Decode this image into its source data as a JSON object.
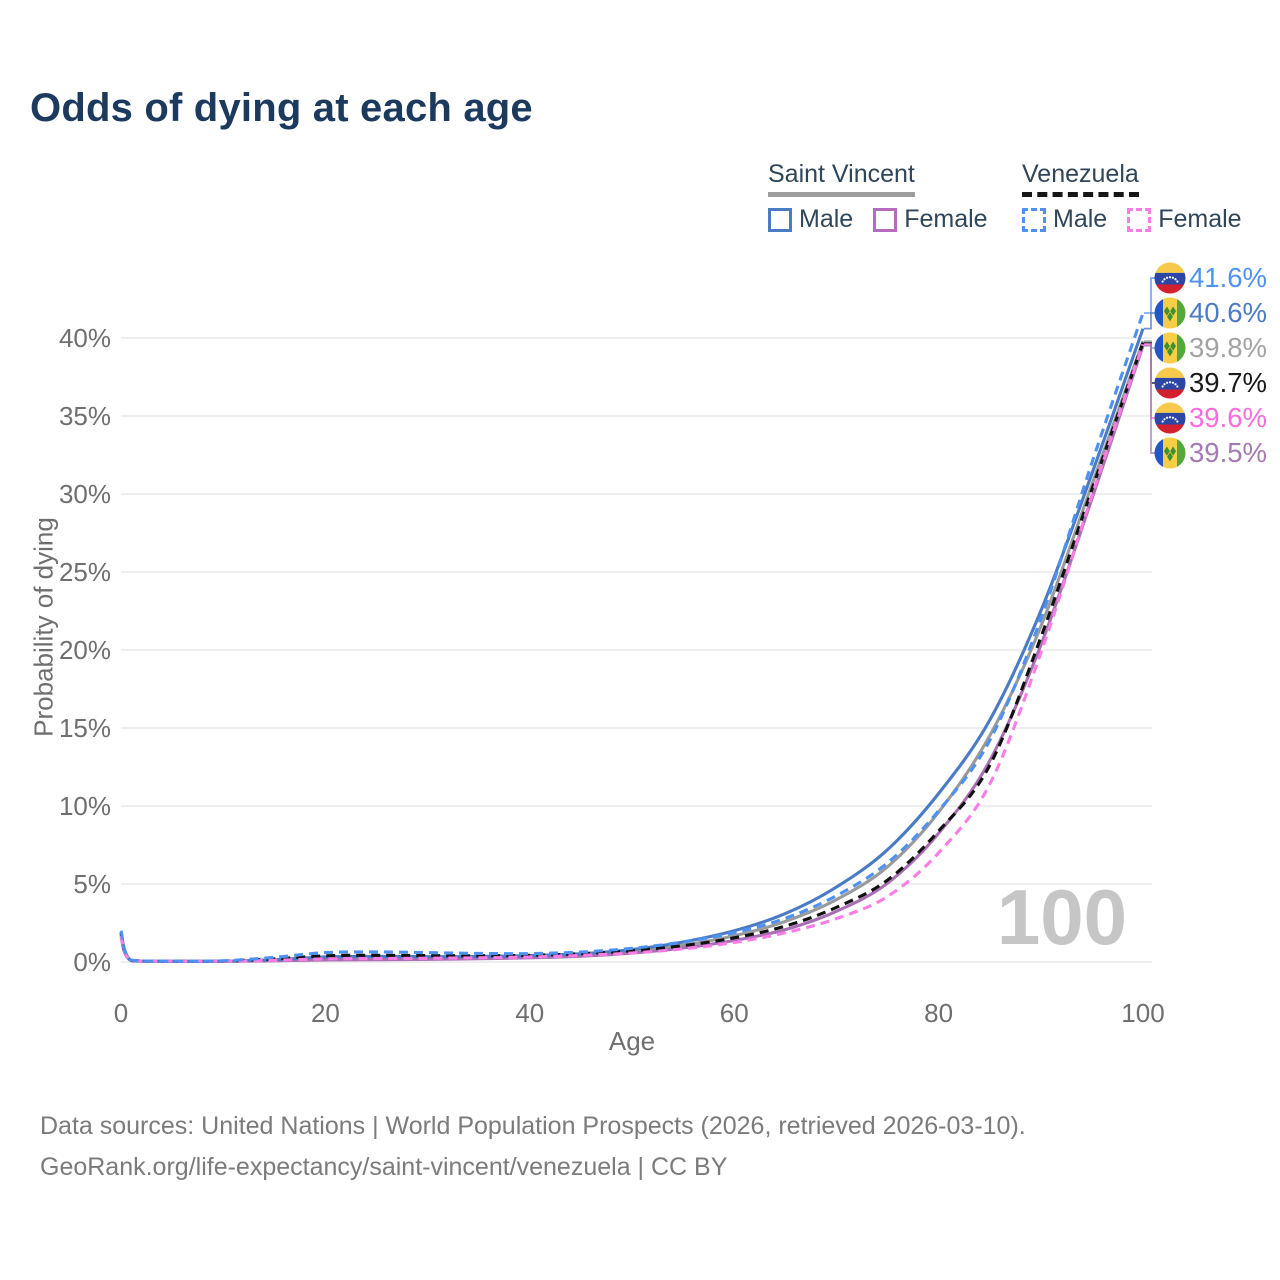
{
  "title": "Odds of dying at each age",
  "legend": {
    "groups": [
      {
        "label": "Saint Vincent",
        "style": "solid",
        "items": [
          {
            "label": "Male",
            "color": "#4a7bc4",
            "dashed": false
          },
          {
            "label": "Female",
            "color": "#b66bbd",
            "dashed": false
          }
        ]
      },
      {
        "label": "Venezuela",
        "style": "dashed",
        "items": [
          {
            "label": "Male",
            "color": "#4d92f2",
            "dashed": true
          },
          {
            "label": "Female",
            "color": "#fb7ce4",
            "dashed": true
          }
        ]
      }
    ]
  },
  "chart_data": {
    "type": "line",
    "title": "Odds of dying at each age",
    "xlabel": "Age",
    "ylabel": "Probability of dying",
    "xlim": [
      0,
      100
    ],
    "ylim": [
      0,
      43
    ],
    "xticks": [
      0,
      20,
      40,
      60,
      80,
      100
    ],
    "yticks": [
      0,
      5,
      10,
      15,
      20,
      25,
      30,
      35,
      40
    ],
    "grid": true,
    "legend_position": "top-right",
    "watermark": "100",
    "x": [
      0,
      1,
      5,
      10,
      15,
      20,
      25,
      30,
      35,
      40,
      45,
      50,
      55,
      60,
      65,
      70,
      75,
      80,
      85,
      90,
      95,
      100
    ],
    "series": [
      {
        "key": "saint-vincent-all",
        "name": "Saint Vincent",
        "color": "#9a9a9a",
        "dash": null,
        "values": [
          1.75,
          0.09,
          0.05,
          0.05,
          0.11,
          0.23,
          0.26,
          0.26,
          0.28,
          0.34,
          0.45,
          0.68,
          1.07,
          1.68,
          2.6,
          4.0,
          6.1,
          9.6,
          14.5,
          21.5,
          30.6,
          39.8
        ]
      },
      {
        "key": "saint-vincent-female",
        "name": "Saint Vincent Female",
        "color": "#a96fb5",
        "dash": null,
        "values": [
          1.6,
          0.08,
          0.04,
          0.04,
          0.08,
          0.13,
          0.15,
          0.17,
          0.21,
          0.27,
          0.37,
          0.57,
          0.9,
          1.38,
          2.08,
          3.25,
          5.05,
          8.25,
          12.9,
          20.3,
          29.7,
          39.5
        ]
      },
      {
        "key": "saint-vincent-male",
        "name": "Saint Vincent Male",
        "color": "#4a7bc4",
        "dash": null,
        "values": [
          1.9,
          0.1,
          0.05,
          0.06,
          0.15,
          0.33,
          0.36,
          0.34,
          0.35,
          0.41,
          0.53,
          0.8,
          1.28,
          2.0,
          3.1,
          4.8,
          7.2,
          10.8,
          15.5,
          22.5,
          31.3,
          40.6
        ]
      },
      {
        "key": "venezuela-all",
        "name": "Venezuela",
        "color": "#111111",
        "dash": "9 6",
        "values": [
          1.85,
          0.11,
          0.05,
          0.06,
          0.2,
          0.4,
          0.43,
          0.41,
          0.4,
          0.43,
          0.53,
          0.72,
          1.05,
          1.55,
          2.3,
          3.5,
          5.25,
          8.4,
          12.6,
          20.8,
          30.3,
          39.7
        ]
      },
      {
        "key": "venezuela-female",
        "name": "Venezuela Female",
        "color": "#fb7ce4",
        "dash": "9 6",
        "values": [
          1.7,
          0.1,
          0.05,
          0.05,
          0.11,
          0.2,
          0.22,
          0.24,
          0.27,
          0.32,
          0.42,
          0.58,
          0.84,
          1.25,
          1.88,
          2.78,
          4.2,
          7.0,
          11.4,
          19.8,
          29.9,
          39.6
        ]
      },
      {
        "key": "venezuela-male",
        "name": "Venezuela Male",
        "color": "#4d92f2",
        "dash": "9 6",
        "values": [
          2.0,
          0.12,
          0.06,
          0.08,
          0.3,
          0.6,
          0.65,
          0.6,
          0.55,
          0.54,
          0.64,
          0.88,
          1.28,
          1.88,
          2.8,
          4.25,
          6.35,
          9.7,
          14.2,
          22.0,
          32.0,
          41.6
        ]
      }
    ],
    "end_labels": [
      {
        "series_key": "venezuela-male",
        "text": "41.6%",
        "value": 41.6,
        "flag": "venezuela",
        "color": "#4d92f2"
      },
      {
        "series_key": "saint-vincent-male",
        "text": "40.6%",
        "value": 40.6,
        "flag": "saint-vincent",
        "color": "#4a7bc4"
      },
      {
        "series_key": "saint-vincent-all",
        "text": "39.8%",
        "value": 39.8,
        "flag": "saint-vincent",
        "color": "#a3a3a3"
      },
      {
        "series_key": "venezuela-all",
        "text": "39.7%",
        "value": 39.7,
        "flag": "venezuela",
        "color": "#1a1a1a"
      },
      {
        "series_key": "venezuela-female",
        "text": "39.6%",
        "value": 39.6,
        "flag": "venezuela",
        "color": "#fc6ade"
      },
      {
        "series_key": "saint-vincent-female",
        "text": "39.5%",
        "value": 39.5,
        "flag": "saint-vincent",
        "color": "#a679b3"
      }
    ]
  },
  "footer": {
    "line1": "Data sources: United Nations | World Population Prospects (2026, retrieved 2026-03-10).",
    "line2": "GeoRank.org/life-expectancy/saint-vincent/venezuela | CC BY"
  }
}
